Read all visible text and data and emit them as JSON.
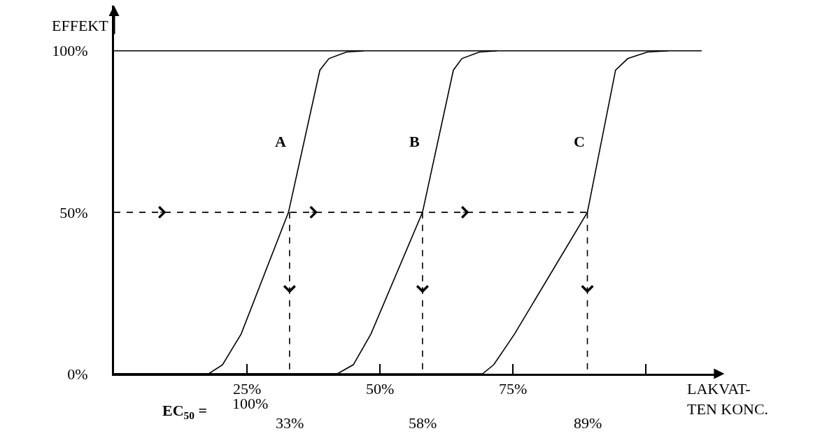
{
  "chart_data": {
    "type": "line",
    "xlabel": "LAKVAT-\nTEN KONC.",
    "ylabel": "EFFEKT",
    "xlim": [
      0,
      113.4
    ],
    "ylim": [
      0,
      114
    ],
    "xticks": [
      {
        "value": 25,
        "label": "25%"
      },
      {
        "value": 50,
        "label": "50%"
      },
      {
        "value": 75,
        "label": "75%"
      },
      {
        "value": 100,
        "label": null
      }
    ],
    "yticks": [
      {
        "value": 0,
        "label": "0%"
      },
      {
        "value": 50,
        "label": "50%"
      },
      {
        "value": 100,
        "label": "100%"
      }
    ],
    "grid": false,
    "legend": false,
    "marker": "none",
    "series": [
      {
        "name": "A",
        "color": "#000000",
        "x": [
          0,
          17.8,
          20.4,
          23.9,
          32.8,
          38.7,
          40.4,
          43.7,
          47
        ],
        "values": [
          0,
          0,
          2.8,
          12.3,
          50,
          94,
          97.6,
          99.6,
          100
        ]
      },
      {
        "name": "B",
        "color": "#000000",
        "x": [
          0,
          42,
          45,
          48.3,
          58,
          63.8,
          65.4,
          68.7,
          72
        ],
        "values": [
          0,
          0,
          2.8,
          12.3,
          50,
          94,
          97.6,
          99.6,
          100
        ]
      },
      {
        "name": "C",
        "color": "#000000",
        "x": [
          0,
          69.3,
          71.4,
          75.3,
          89,
          94.3,
          96.6,
          100.3,
          104.2
        ],
        "values": [
          0,
          0,
          2.8,
          12.3,
          50,
          94,
          97.6,
          99.6,
          100
        ]
      },
      {
        "color": "#000000",
        "x": [
          0,
          110.5
        ],
        "values": [
          100,
          100
        ]
      },
      {
        "color": "#000000",
        "line_style": "dashed",
        "x": [
          0,
          89
        ],
        "values": [
          50,
          50
        ]
      },
      {
        "color": "#000000",
        "line_style": "dashed",
        "x": [
          33,
          33
        ],
        "values": [
          50,
          0
        ]
      },
      {
        "color": "#000000",
        "line_style": "dashed",
        "x": [
          58,
          58
        ],
        "values": [
          50,
          0
        ]
      },
      {
        "color": "#000000",
        "line_style": "dashed",
        "x": [
          89,
          89
        ],
        "values": [
          50,
          0
        ]
      }
    ],
    "annotations": [
      "100%",
      "EC$_{50}$ =",
      {
        "text": "33%",
        "x": 33,
        "y": 0
      },
      {
        "text": "58%",
        "x": 58,
        "y": 0
      },
      {
        "text": "89%",
        "x": 89,
        "y": 0
      }
    ]
  }
}
